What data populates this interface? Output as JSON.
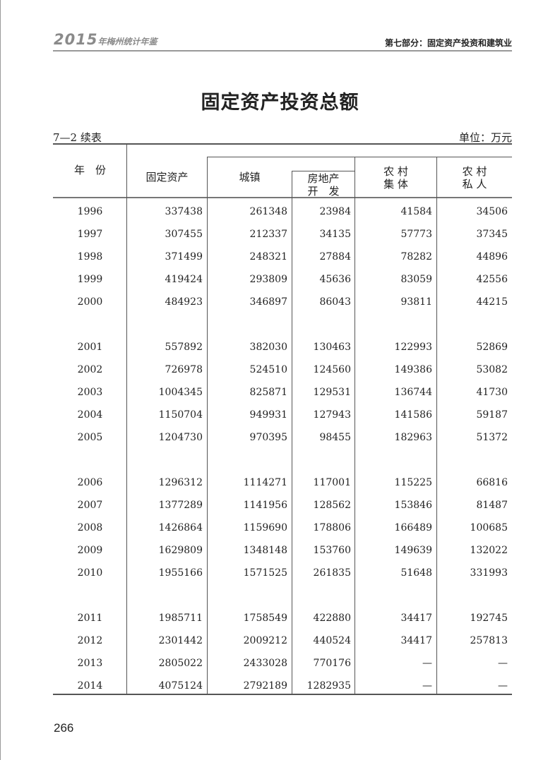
{
  "header": {
    "brand_year": "2015",
    "brand_name": "年梅州统计年鉴",
    "section": "第七部分：固定资产投资和建筑业"
  },
  "title": "固定资产投资总额",
  "table_number": "7—2 续表",
  "unit": "单位：万元",
  "columns": {
    "year": "年　份",
    "fixed_assets": "固定资产",
    "urban": "城镇",
    "real_estate_line1": "房地产",
    "real_estate_line2": "开　发",
    "rural_collective_line1": "农 村",
    "rural_collective_line2": "集 体",
    "rural_private_line1": "农 村",
    "rural_private_line2": "私 人"
  },
  "rows": [
    [
      "1996",
      "337438",
      "261348",
      "23984",
      "41584",
      "34506"
    ],
    [
      "1997",
      "307455",
      "212337",
      "34135",
      "57773",
      "37345"
    ],
    [
      "1998",
      "371499",
      "248321",
      "27884",
      "78282",
      "44896"
    ],
    [
      "1999",
      "419424",
      "293809",
      "45636",
      "83059",
      "42556"
    ],
    [
      "2000",
      "484923",
      "346897",
      "86043",
      "93811",
      "44215"
    ],
    [
      "2001",
      "557892",
      "382030",
      "130463",
      "122993",
      "52869"
    ],
    [
      "2002",
      "726978",
      "524510",
      "124560",
      "149386",
      "53082"
    ],
    [
      "2003",
      "1004345",
      "825871",
      "129531",
      "136744",
      "41730"
    ],
    [
      "2004",
      "1150704",
      "949931",
      "127943",
      "141586",
      "59187"
    ],
    [
      "2005",
      "1204730",
      "970395",
      "98455",
      "182963",
      "51372"
    ],
    [
      "2006",
      "1296312",
      "1114271",
      "117001",
      "115225",
      "66816"
    ],
    [
      "2007",
      "1377289",
      "1141956",
      "128562",
      "153846",
      "81487"
    ],
    [
      "2008",
      "1426864",
      "1159690",
      "178806",
      "166489",
      "100685"
    ],
    [
      "2009",
      "1629809",
      "1348148",
      "153760",
      "149639",
      "132022"
    ],
    [
      "2010",
      "1955166",
      "1571525",
      "261835",
      "51648",
      "331993"
    ],
    [
      "2011",
      "1985711",
      "1758549",
      "422880",
      "34417",
      "192745"
    ],
    [
      "2012",
      "2301442",
      "2009212",
      "440524",
      "34417",
      "257813"
    ],
    [
      "2013",
      "2805022",
      "2433028",
      "770176",
      "—",
      "—"
    ],
    [
      "2014",
      "4075124",
      "2792189",
      "1282935",
      "—",
      "—"
    ]
  ],
  "page_number": "266"
}
